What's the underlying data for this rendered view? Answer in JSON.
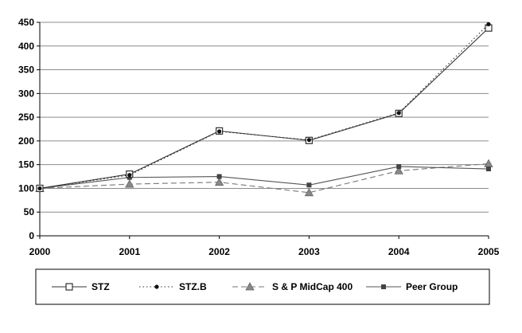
{
  "chart_data": {
    "type": "line",
    "title": "",
    "xlabel": "",
    "ylabel": "",
    "x": [
      "2000",
      "2001",
      "2002",
      "2003",
      "2004",
      "2005"
    ],
    "ylim": [
      0,
      450
    ],
    "yticks": [
      "0",
      "50",
      "100",
      "150",
      "200",
      "250",
      "300",
      "350",
      "400",
      "450"
    ],
    "grid": "horizontal",
    "legend_position": "bottom",
    "series": [
      {
        "name": "STZ",
        "values": [
          100,
          130,
          221,
          201,
          258,
          438
        ],
        "color": "#333333",
        "dash": "solid",
        "marker": "square-open"
      },
      {
        "name": "STZ.B",
        "values": [
          100,
          128,
          220,
          202,
          259,
          446
        ],
        "color": "#333333",
        "dash": "dot",
        "marker": "dot"
      },
      {
        "name": "S & P MidCap 400",
        "values": [
          100,
          109,
          113,
          91,
          137,
          152
        ],
        "color": "#777777",
        "dash": "dash",
        "marker": "triangle"
      },
      {
        "name": "Peer Group",
        "values": [
          100,
          123,
          125,
          107,
          146,
          141
        ],
        "color": "#555555",
        "dash": "solid",
        "marker": "square-filled"
      }
    ]
  }
}
